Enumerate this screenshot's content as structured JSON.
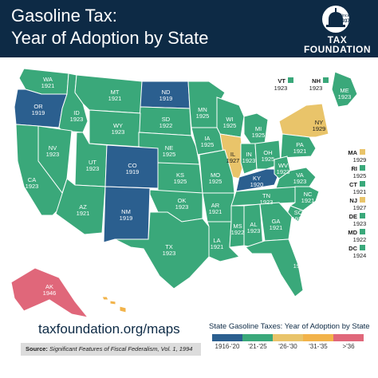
{
  "header": {
    "title_line1": "Gasoline Tax:",
    "title_line2": "Year of Adoption by State",
    "logo_since": "Since",
    "logo_year": "1937",
    "logo_word1": "TAX",
    "logo_word2": "FOUNDATION"
  },
  "colors": {
    "1916-20": "#2b5f8f",
    "21-25": "#3aa87a",
    "26-30": "#e9c46a",
    "31-35": "#f2b34a",
    "36+": "#e0677a",
    "header": "#0d2a45"
  },
  "map": {
    "states": [
      {
        "abbr": "WA",
        "year": "1921",
        "bin": "21-25"
      },
      {
        "abbr": "OR",
        "year": "1919",
        "bin": "1916-20"
      },
      {
        "abbr": "ID",
        "year": "1923",
        "bin": "21-25"
      },
      {
        "abbr": "MT",
        "year": "1921",
        "bin": "21-25"
      },
      {
        "abbr": "ND",
        "year": "1919",
        "bin": "1916-20"
      },
      {
        "abbr": "SD",
        "year": "1922",
        "bin": "21-25"
      },
      {
        "abbr": "MN",
        "year": "1925",
        "bin": "21-25"
      },
      {
        "abbr": "WI",
        "year": "1925",
        "bin": "21-25"
      },
      {
        "abbr": "MI",
        "year": "1925",
        "bin": "21-25"
      },
      {
        "abbr": "NY",
        "year": "1929",
        "bin": "26-30"
      },
      {
        "abbr": "ME",
        "year": "1923",
        "bin": "21-25"
      },
      {
        "abbr": "WY",
        "year": "1923",
        "bin": "21-25"
      },
      {
        "abbr": "NE",
        "year": "1925",
        "bin": "21-25"
      },
      {
        "abbr": "IA",
        "year": "1925",
        "bin": "21-25"
      },
      {
        "abbr": "IL",
        "year": "1927",
        "bin": "26-30"
      },
      {
        "abbr": "IN",
        "year": "1923",
        "bin": "21-25"
      },
      {
        "abbr": "OH",
        "year": "1925",
        "bin": "21-25"
      },
      {
        "abbr": "PA",
        "year": "1921",
        "bin": "21-25"
      },
      {
        "abbr": "NV",
        "year": "1923",
        "bin": "21-25"
      },
      {
        "abbr": "UT",
        "year": "1923",
        "bin": "21-25"
      },
      {
        "abbr": "CO",
        "year": "1919",
        "bin": "1916-20"
      },
      {
        "abbr": "KS",
        "year": "1925",
        "bin": "21-25"
      },
      {
        "abbr": "MO",
        "year": "1925",
        "bin": "21-25"
      },
      {
        "abbr": "KY",
        "year": "1920",
        "bin": "1916-20"
      },
      {
        "abbr": "WV",
        "year": "1923",
        "bin": "21-25"
      },
      {
        "abbr": "VA",
        "year": "1923",
        "bin": "21-25"
      },
      {
        "abbr": "CA",
        "year": "1923",
        "bin": "21-25"
      },
      {
        "abbr": "AZ",
        "year": "1921",
        "bin": "21-25"
      },
      {
        "abbr": "NM",
        "year": "1919",
        "bin": "1916-20"
      },
      {
        "abbr": "OK",
        "year": "1923",
        "bin": "21-25"
      },
      {
        "abbr": "AR",
        "year": "1921",
        "bin": "21-25"
      },
      {
        "abbr": "TN",
        "year": "1923",
        "bin": "21-25"
      },
      {
        "abbr": "NC",
        "year": "1921",
        "bin": "21-25"
      },
      {
        "abbr": "SC",
        "year": "1922",
        "bin": "21-25"
      },
      {
        "abbr": "TX",
        "year": "1923",
        "bin": "21-25"
      },
      {
        "abbr": "LA",
        "year": "1921",
        "bin": "21-25"
      },
      {
        "abbr": "MS",
        "year": "1922",
        "bin": "21-25"
      },
      {
        "abbr": "AL",
        "year": "1923",
        "bin": "21-25"
      },
      {
        "abbr": "GA",
        "year": "1921",
        "bin": "21-25"
      },
      {
        "abbr": "FL",
        "year": "1921",
        "bin": "21-25"
      },
      {
        "abbr": "AK",
        "year": "1946",
        "bin": "36+"
      },
      {
        "abbr": "HI",
        "year": "1932",
        "bin": "31-35"
      },
      {
        "abbr": "VT",
        "year": "1923",
        "bin": "21-25"
      },
      {
        "abbr": "NH",
        "year": "1923",
        "bin": "21-25"
      },
      {
        "abbr": "MA",
        "year": "1929",
        "bin": "26-30"
      },
      {
        "abbr": "RI",
        "year": "1925",
        "bin": "21-25"
      },
      {
        "abbr": "CT",
        "year": "1921",
        "bin": "21-25"
      },
      {
        "abbr": "NJ",
        "year": "1927",
        "bin": "26-30"
      },
      {
        "abbr": "DE",
        "year": "1923",
        "bin": "21-25"
      },
      {
        "abbr": "MD",
        "year": "1922",
        "bin": "21-25"
      },
      {
        "abbr": "DC",
        "year": "1924",
        "bin": "21-25"
      }
    ]
  },
  "footer": {
    "url": "taxfoundation.org/maps",
    "source_label": "Source:",
    "source_text": "Significant Features of Fiscal Federalism, Vol. 1, 1994"
  },
  "legend": {
    "title": "State Gasoline Taxes: Year of Adoption by State",
    "items": [
      {
        "label": "1916-'20",
        "bin": "1916-20"
      },
      {
        "label": "'21-'25",
        "bin": "21-25"
      },
      {
        "label": "'26-'30",
        "bin": "26-30"
      },
      {
        "label": "'31-'35",
        "bin": "31-35"
      },
      {
        "label": ">'36",
        "bin": "36+"
      }
    ]
  }
}
